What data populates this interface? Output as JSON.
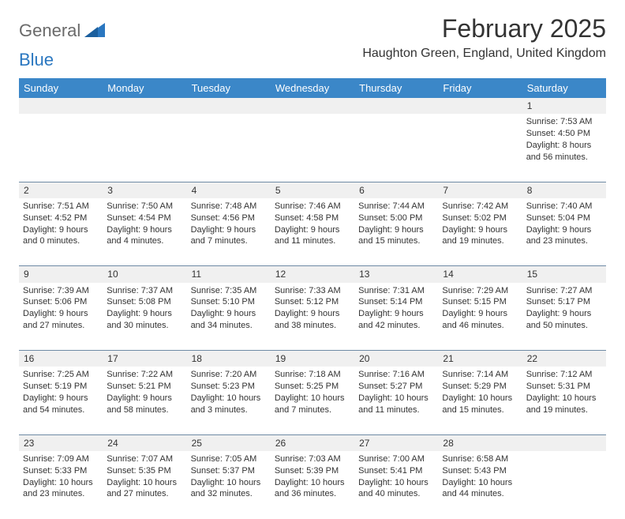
{
  "logo": {
    "general": "General",
    "blue": "Blue"
  },
  "title": "February 2025",
  "location": "Haughton Green, England, United Kingdom",
  "colors": {
    "header_bg": "#3b87c8",
    "header_text": "#ffffff",
    "daynum_bg": "#f0f0f0",
    "border": "#6e8aa5",
    "body_text": "#333333",
    "logo_gray": "#6a6a6a",
    "logo_blue": "#2a77c0",
    "page_bg": "#ffffff"
  },
  "day_headers": [
    "Sunday",
    "Monday",
    "Tuesday",
    "Wednesday",
    "Thursday",
    "Friday",
    "Saturday"
  ],
  "weeks": [
    [
      null,
      null,
      null,
      null,
      null,
      null,
      {
        "n": "1",
        "sr": "Sunrise: 7:53 AM",
        "ss": "Sunset: 4:50 PM",
        "dl": "Daylight: 8 hours and 56 minutes."
      }
    ],
    [
      {
        "n": "2",
        "sr": "Sunrise: 7:51 AM",
        "ss": "Sunset: 4:52 PM",
        "dl": "Daylight: 9 hours and 0 minutes."
      },
      {
        "n": "3",
        "sr": "Sunrise: 7:50 AM",
        "ss": "Sunset: 4:54 PM",
        "dl": "Daylight: 9 hours and 4 minutes."
      },
      {
        "n": "4",
        "sr": "Sunrise: 7:48 AM",
        "ss": "Sunset: 4:56 PM",
        "dl": "Daylight: 9 hours and 7 minutes."
      },
      {
        "n": "5",
        "sr": "Sunrise: 7:46 AM",
        "ss": "Sunset: 4:58 PM",
        "dl": "Daylight: 9 hours and 11 minutes."
      },
      {
        "n": "6",
        "sr": "Sunrise: 7:44 AM",
        "ss": "Sunset: 5:00 PM",
        "dl": "Daylight: 9 hours and 15 minutes."
      },
      {
        "n": "7",
        "sr": "Sunrise: 7:42 AM",
        "ss": "Sunset: 5:02 PM",
        "dl": "Daylight: 9 hours and 19 minutes."
      },
      {
        "n": "8",
        "sr": "Sunrise: 7:40 AM",
        "ss": "Sunset: 5:04 PM",
        "dl": "Daylight: 9 hours and 23 minutes."
      }
    ],
    [
      {
        "n": "9",
        "sr": "Sunrise: 7:39 AM",
        "ss": "Sunset: 5:06 PM",
        "dl": "Daylight: 9 hours and 27 minutes."
      },
      {
        "n": "10",
        "sr": "Sunrise: 7:37 AM",
        "ss": "Sunset: 5:08 PM",
        "dl": "Daylight: 9 hours and 30 minutes."
      },
      {
        "n": "11",
        "sr": "Sunrise: 7:35 AM",
        "ss": "Sunset: 5:10 PM",
        "dl": "Daylight: 9 hours and 34 minutes."
      },
      {
        "n": "12",
        "sr": "Sunrise: 7:33 AM",
        "ss": "Sunset: 5:12 PM",
        "dl": "Daylight: 9 hours and 38 minutes."
      },
      {
        "n": "13",
        "sr": "Sunrise: 7:31 AM",
        "ss": "Sunset: 5:14 PM",
        "dl": "Daylight: 9 hours and 42 minutes."
      },
      {
        "n": "14",
        "sr": "Sunrise: 7:29 AM",
        "ss": "Sunset: 5:15 PM",
        "dl": "Daylight: 9 hours and 46 minutes."
      },
      {
        "n": "15",
        "sr": "Sunrise: 7:27 AM",
        "ss": "Sunset: 5:17 PM",
        "dl": "Daylight: 9 hours and 50 minutes."
      }
    ],
    [
      {
        "n": "16",
        "sr": "Sunrise: 7:25 AM",
        "ss": "Sunset: 5:19 PM",
        "dl": "Daylight: 9 hours and 54 minutes."
      },
      {
        "n": "17",
        "sr": "Sunrise: 7:22 AM",
        "ss": "Sunset: 5:21 PM",
        "dl": "Daylight: 9 hours and 58 minutes."
      },
      {
        "n": "18",
        "sr": "Sunrise: 7:20 AM",
        "ss": "Sunset: 5:23 PM",
        "dl": "Daylight: 10 hours and 3 minutes."
      },
      {
        "n": "19",
        "sr": "Sunrise: 7:18 AM",
        "ss": "Sunset: 5:25 PM",
        "dl": "Daylight: 10 hours and 7 minutes."
      },
      {
        "n": "20",
        "sr": "Sunrise: 7:16 AM",
        "ss": "Sunset: 5:27 PM",
        "dl": "Daylight: 10 hours and 11 minutes."
      },
      {
        "n": "21",
        "sr": "Sunrise: 7:14 AM",
        "ss": "Sunset: 5:29 PM",
        "dl": "Daylight: 10 hours and 15 minutes."
      },
      {
        "n": "22",
        "sr": "Sunrise: 7:12 AM",
        "ss": "Sunset: 5:31 PM",
        "dl": "Daylight: 10 hours and 19 minutes."
      }
    ],
    [
      {
        "n": "23",
        "sr": "Sunrise: 7:09 AM",
        "ss": "Sunset: 5:33 PM",
        "dl": "Daylight: 10 hours and 23 minutes."
      },
      {
        "n": "24",
        "sr": "Sunrise: 7:07 AM",
        "ss": "Sunset: 5:35 PM",
        "dl": "Daylight: 10 hours and 27 minutes."
      },
      {
        "n": "25",
        "sr": "Sunrise: 7:05 AM",
        "ss": "Sunset: 5:37 PM",
        "dl": "Daylight: 10 hours and 32 minutes."
      },
      {
        "n": "26",
        "sr": "Sunrise: 7:03 AM",
        "ss": "Sunset: 5:39 PM",
        "dl": "Daylight: 10 hours and 36 minutes."
      },
      {
        "n": "27",
        "sr": "Sunrise: 7:00 AM",
        "ss": "Sunset: 5:41 PM",
        "dl": "Daylight: 10 hours and 40 minutes."
      },
      {
        "n": "28",
        "sr": "Sunrise: 6:58 AM",
        "ss": "Sunset: 5:43 PM",
        "dl": "Daylight: 10 hours and 44 minutes."
      },
      null
    ]
  ]
}
